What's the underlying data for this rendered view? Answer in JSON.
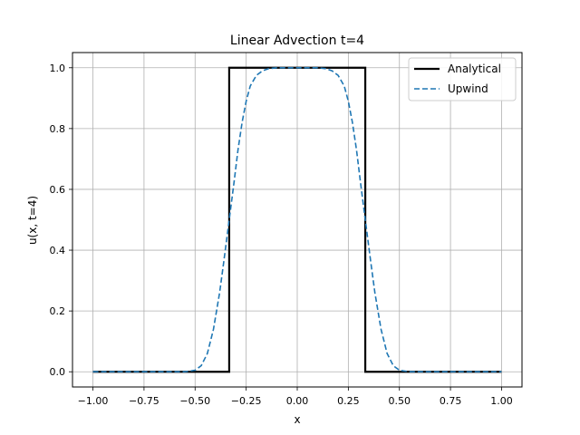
{
  "chart_data": {
    "type": "line",
    "title": "Linear Advection t=4",
    "xlabel": "x",
    "ylabel": "u(x, t=4)",
    "xlim": [
      -1.1,
      1.1
    ],
    "ylim": [
      -0.05,
      1.05
    ],
    "grid": true,
    "legend_position": "top-right",
    "x_ticks": [
      -1.0,
      -0.75,
      -0.5,
      -0.25,
      0.0,
      0.25,
      0.5,
      0.75,
      1.0
    ],
    "x_tick_labels": [
      "−1.00",
      "−0.75",
      "−0.50",
      "−0.25",
      "0.00",
      "0.25",
      "0.50",
      "0.75",
      "1.00"
    ],
    "y_ticks": [
      0.0,
      0.2,
      0.4,
      0.6,
      0.8,
      1.0
    ],
    "y_tick_labels": [
      "0.0",
      "0.2",
      "0.4",
      "0.6",
      "0.8",
      "1.0"
    ],
    "series": [
      {
        "name": "Analytical",
        "color": "#000000",
        "style": "solid",
        "x": [
          -1.0,
          -0.333,
          -0.333,
          0.333,
          0.333,
          1.0
        ],
        "y": [
          0.0,
          0.0,
          1.0,
          1.0,
          0.0,
          0.0
        ]
      },
      {
        "name": "Upwind",
        "color": "#1f77b4",
        "style": "dashed",
        "x": [
          -1.0,
          -0.6,
          -0.55,
          -0.5,
          -0.47,
          -0.44,
          -0.41,
          -0.38,
          -0.36,
          -0.333,
          -0.31,
          -0.29,
          -0.27,
          -0.25,
          -0.23,
          -0.2,
          -0.17,
          -0.14,
          -0.1,
          0.0,
          0.1,
          0.14,
          0.17,
          0.2,
          0.23,
          0.25,
          0.27,
          0.29,
          0.31,
          0.333,
          0.36,
          0.38,
          0.41,
          0.44,
          0.47,
          0.5,
          0.55,
          0.6,
          1.0
        ],
        "y": [
          0.0,
          0.0,
          0.0,
          0.005,
          0.02,
          0.06,
          0.14,
          0.26,
          0.36,
          0.5,
          0.62,
          0.73,
          0.82,
          0.89,
          0.94,
          0.975,
          0.99,
          0.997,
          1.0,
          1.0,
          1.0,
          0.997,
          0.99,
          0.975,
          0.94,
          0.89,
          0.82,
          0.73,
          0.62,
          0.5,
          0.36,
          0.26,
          0.14,
          0.06,
          0.02,
          0.005,
          0.0,
          0.0,
          0.0
        ]
      }
    ]
  }
}
